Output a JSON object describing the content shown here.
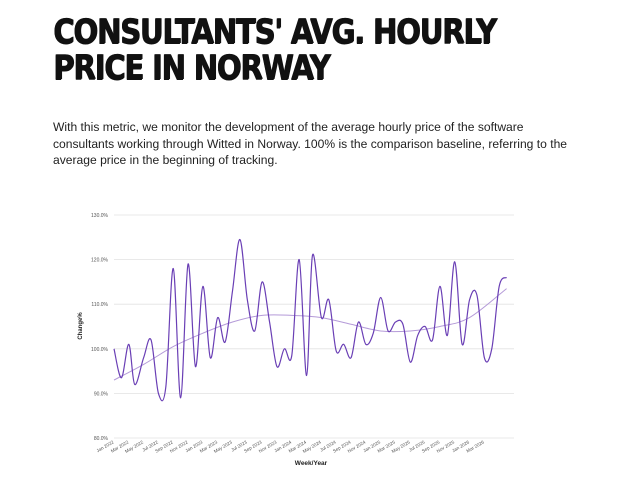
{
  "page": {
    "title": "CONSULTANTS' AVG. HOURLY PRICE IN NORWAY",
    "description": "With this metric, we monitor the development of the average hourly price of the software consultants working through Witted in Norway. 100% is the comparison baseline, referring to the average price in the beginning of tracking."
  },
  "chart_data": {
    "type": "line",
    "title": "",
    "xlabel": "Week/Year",
    "ylabel": "Change%",
    "ylim": [
      80,
      130
    ],
    "yticks": [
      80,
      90,
      100,
      110,
      120,
      130
    ],
    "ytick_labels": [
      "80.0%",
      "90.0%",
      "100.0%",
      "110.0%",
      "120.0%",
      "130.0%"
    ],
    "x_tick_labels": [
      "Jan 2022",
      "Mar 2022",
      "May 2022",
      "Jul 2022",
      "Sep 2022",
      "Nov 2022",
      "Jan 2023",
      "Mar 2023",
      "May 2023",
      "Jul 2023",
      "Sep 2023",
      "Nov 2023",
      "Jan 2024",
      "Mar 2024",
      "May 2024",
      "Jul 2024",
      "Sep 2024",
      "Nov 2024",
      "Jan 2025",
      "Mar 2025",
      "May 2025",
      "Jul 2025",
      "Sep 2025",
      "Nov 2025",
      "Jan 2026",
      "Mar 2026"
    ],
    "x_range": [
      0,
      27
    ],
    "grid": true,
    "series": [
      {
        "name": "",
        "color": "#6a3fb5",
        "x": [
          0,
          0.5,
          1,
          1.4,
          2,
          2.5,
          3,
          3.5,
          4,
          4.5,
          5,
          5.5,
          6,
          6.5,
          7,
          7.5,
          8,
          8.5,
          9,
          9.5,
          10,
          10.5,
          11,
          11.5,
          12,
          12.5,
          13,
          13.4,
          14,
          14.5,
          15,
          15.5,
          16,
          16.5,
          17,
          17.5,
          18,
          18.5,
          19,
          19.5,
          20,
          20.5,
          21,
          21.5,
          22,
          22.5,
          23,
          23.5,
          24,
          24.5,
          25,
          25.5,
          26,
          26.5
        ],
        "values": [
          100,
          93.5,
          101,
          92,
          98,
          102,
          90,
          91.5,
          118,
          89,
          119,
          96,
          114,
          98,
          107,
          101.5,
          113,
          124.5,
          111,
          104,
          115,
          106,
          96,
          100,
          98.5,
          120,
          94,
          121,
          107,
          111,
          99.5,
          101,
          98,
          106,
          101,
          103.5,
          111.5,
          104,
          106,
          105.5,
          97,
          103,
          105,
          102,
          114,
          103,
          119.5,
          101,
          111,
          112,
          98,
          100,
          114,
          116
        ]
      },
      {
        "name": "",
        "color": "#b49ad8",
        "x": [
          0,
          2,
          4,
          6,
          8,
          10,
          12,
          14,
          16,
          18,
          20,
          22,
          24,
          26.5
        ],
        "values": [
          93,
          96.5,
          100.5,
          103.5,
          106,
          107.5,
          107.5,
          107,
          105.5,
          104,
          104,
          105,
          107,
          113.5
        ]
      }
    ]
  }
}
